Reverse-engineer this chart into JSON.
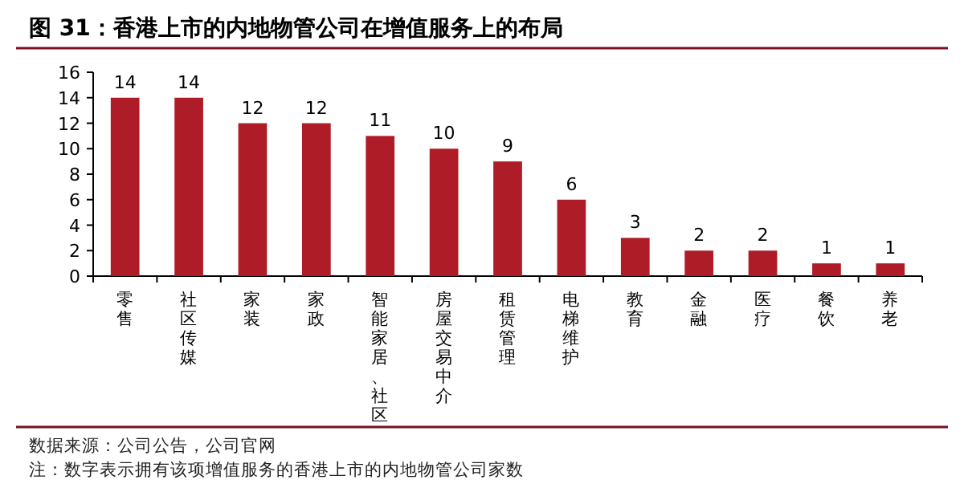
{
  "chart_data": {
    "type": "bar",
    "title": "图 31：香港上市的内地物管公司在增值服务上的布局",
    "categories": [
      "零售",
      "社区传媒",
      "家装",
      "家政",
      "智能家居、社区",
      "房屋交易中介",
      "租赁管理",
      "电梯维护",
      "教育",
      "金融",
      "医疗",
      "餐饮",
      "养老"
    ],
    "values": [
      14,
      14,
      12,
      12,
      11,
      10,
      9,
      6,
      3,
      2,
      2,
      1,
      1
    ],
    "color": "#ae1c28",
    "ylim": [
      0,
      16
    ],
    "yticks": [
      0,
      2,
      4,
      6,
      8,
      10,
      12,
      14,
      16
    ],
    "data_labels": true,
    "annotations": [
      "数据来源：公司公告，公司官网",
      "注：数字表示拥有该项增值服务的香港上市的内地物管公司家数"
    ]
  }
}
